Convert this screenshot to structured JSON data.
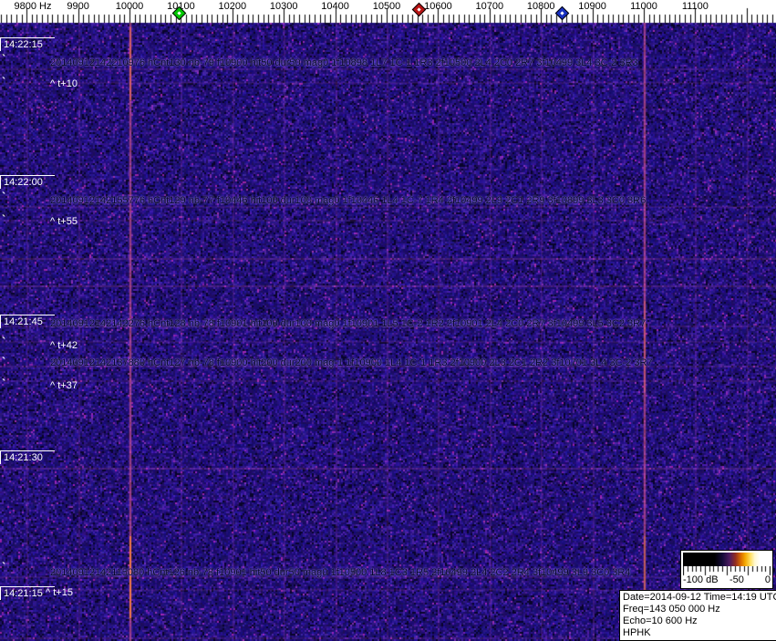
{
  "freq_ruler": {
    "labels": [
      "9800 Hz",
      "9900",
      "10000",
      "10100",
      "10200",
      "10300",
      "10400",
      "10500",
      "10600",
      "10700",
      "10800",
      "10900",
      "11000",
      "11100"
    ],
    "markers": [
      {
        "name": "green-diamond-marker",
        "color": "#00c800"
      },
      {
        "name": "red-diamond-marker",
        "color": "#b81414"
      },
      {
        "name": "blue-diamond-marker",
        "color": "#1830c0"
      }
    ]
  },
  "time_axis": {
    "labels": [
      "14:22:15",
      "14:22:00",
      "14:21:45",
      "14:21:30",
      "14:21:15"
    ]
  },
  "events": [
    {
      "text": "20140912142210976 hCnt130 nb-79 f10900 hit50 dur50 mag0 1f10898 1L7 1C-1 1R3 2f10500 2L4 2C0 2R7 3f10499 3L4 3C-2 3R3",
      "marker": "^ t+10"
    },
    {
      "text": "20140912142155776 hCnt129 nb-77 f10446 hit100 dur100 mag0 1f10446 1L4 1C-7 1R4 2f10499 2L9 2C1 2R9 3f10899 3L3 3C0 3R6",
      "marker": "^ t+55"
    },
    {
      "text": "20140912142142276 hCnt128 nb-78 f10901 hit100 dur100 mag0 1f10901 1L5 1C-2 1R2 2f10901 2L4 2C0 2R7 3f10499 3L5 3C2 3R7",
      "marker": "^ t+42"
    },
    {
      "text": "20140912142137880 hCnt127 nb-78 f10900 hit200 dur200 mag-1 1f10900 1L4 1C-1 1R3 2f10900 2L3 2C1 2R2 3f10701 3L4 3C-2 3R7",
      "marker": "^ t+37"
    },
    {
      "text": "20140912142115080 hCnt126 nb-78 f10901 hit50 dur50 mag0 1f10500 1L8 1C3 1R5 2f10499 2L4 2C2 2R4 3f10499 3L9 3C0 3R4",
      "marker": "^ t+15"
    }
  ],
  "colorscale": {
    "min_label": "-100 dB",
    "mid_label": "-50",
    "max_label": "0"
  },
  "info_box": {
    "lines": [
      "Date=2014-09-12 Time=14:19 UTC",
      "Freq=143 050 000 Hz",
      "Echo=10 600 Hz",
      "HPHK"
    ]
  },
  "colors": {
    "spectrogram_base": "#1c1270",
    "ruler_background": "#ffffff",
    "grid_line": "#be46be",
    "calibration_line": "#ff5c8c",
    "event_text": "#06062c",
    "time_text": "#ffffff"
  }
}
